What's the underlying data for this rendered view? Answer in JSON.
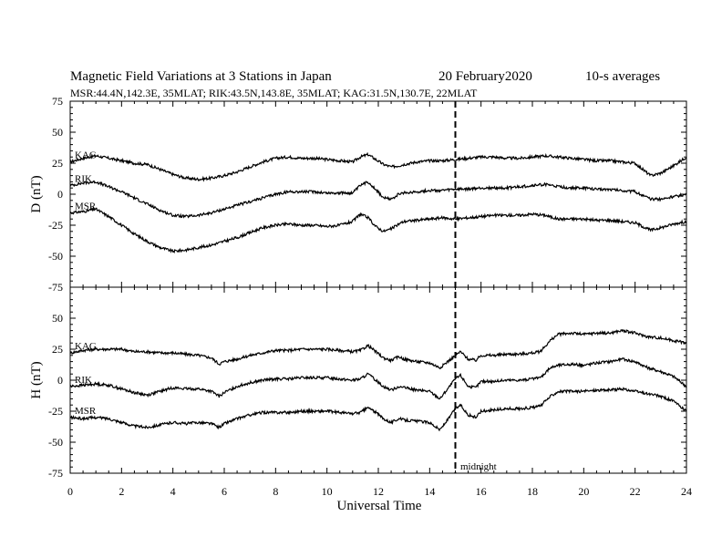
{
  "chart_data": {
    "type": "line",
    "title": "Magnetic Field Variations at 3 Stations in Japan",
    "date": "20 February2020",
    "averaging": "10-s averages",
    "subtitle": "MSR:44.4N,142.3E, 35MLAT;  RIK:43.5N,143.8E, 35MLAT;  KAG:31.5N,130.7E, 22MLAT",
    "xlabel": "Universal Time",
    "xlim": [
      0,
      24
    ],
    "xticks": [
      "0",
      "2",
      "4",
      "6",
      "8",
      "10",
      "12",
      "14",
      "16",
      "18",
      "20",
      "22",
      "24"
    ],
    "annotation": {
      "x": 15,
      "label": "midnight"
    },
    "panels": [
      {
        "ylabel": "D (nT)",
        "ylim": [
          -75,
          75
        ],
        "yticks": [
          "75",
          "50",
          "25",
          "0",
          "-25",
          "-50",
          "-75"
        ],
        "series": [
          {
            "name": "KAG",
            "x": [
              0,
              0.5,
              1,
              1.5,
              2,
              2.5,
              3,
              3.5,
              4,
              4.5,
              5,
              5.5,
              6,
              6.5,
              7,
              7.5,
              8,
              8.5,
              9,
              9.5,
              10,
              10.5,
              11,
              11.3,
              11.6,
              11.9,
              12.2,
              12.5,
              12.8,
              13,
              13.5,
              14,
              14.5,
              15,
              15.5,
              16,
              16.5,
              17,
              17.5,
              18,
              18.5,
              19,
              19.5,
              20,
              20.5,
              21,
              21.5,
              22,
              22.3,
              22.6,
              23,
              23.5,
              24
            ],
            "values": [
              26,
              29,
              31,
              29,
              27,
              25,
              24,
              20,
              16,
              13,
              12,
              13,
              15,
              18,
              22,
              26,
              29,
              30,
              29,
              29,
              28,
              27,
              26,
              30,
              32,
              28,
              24,
              22,
              23,
              24,
              26,
              27,
              27,
              28,
              29,
              30,
              30,
              29,
              29,
              30,
              31,
              30,
              29,
              28,
              27,
              27,
              26,
              25,
              20,
              15,
              17,
              23,
              30
            ]
          },
          {
            "name": "RIK",
            "x": [
              0,
              0.5,
              1,
              1.5,
              2,
              2.5,
              3,
              3.5,
              4,
              4.5,
              5,
              5.5,
              6,
              6.5,
              7,
              7.5,
              8,
              8.5,
              9,
              9.5,
              10,
              10.5,
              11,
              11.3,
              11.6,
              11.9,
              12.2,
              12.5,
              12.8,
              13,
              13.5,
              14,
              14.5,
              15,
              15.5,
              16,
              16.5,
              17,
              17.5,
              18,
              18.5,
              19,
              19.5,
              20,
              20.5,
              21,
              21.5,
              22,
              22.3,
              22.6,
              23,
              23.5,
              24
            ],
            "values": [
              7,
              9,
              10,
              6,
              2,
              -3,
              -8,
              -13,
              -17,
              -18,
              -17,
              -15,
              -12,
              -9,
              -6,
              -3,
              0,
              2,
              2,
              2,
              1,
              1,
              1,
              7,
              10,
              4,
              -3,
              -4,
              0,
              1,
              2,
              3,
              3,
              4,
              4,
              5,
              5,
              5,
              6,
              7,
              8,
              6,
              5,
              5,
              4,
              4,
              3,
              2,
              -1,
              -4,
              -4,
              -2,
              0
            ]
          },
          {
            "name": "MSR",
            "x": [
              0,
              0.5,
              1,
              1.5,
              2,
              2.5,
              3,
              3.5,
              4,
              4.5,
              5,
              5.5,
              6,
              6.5,
              7,
              7.5,
              8,
              8.5,
              9,
              9.5,
              10,
              10.5,
              11,
              11.3,
              11.6,
              11.9,
              12.2,
              12.5,
              12.8,
              13,
              13.5,
              14,
              14.5,
              15,
              15.5,
              16,
              16.5,
              17,
              17.5,
              18,
              18.5,
              19,
              19.5,
              20,
              20.5,
              21,
              21.5,
              22,
              22.3,
              22.6,
              23,
              23.5,
              24
            ],
            "values": [
              -15,
              -14,
              -12,
              -18,
              -25,
              -32,
              -38,
              -43,
              -46,
              -45,
              -43,
              -41,
              -38,
              -35,
              -31,
              -27,
              -25,
              -24,
              -25,
              -25,
              -26,
              -25,
              -22,
              -16,
              -19,
              -26,
              -30,
              -28,
              -24,
              -22,
              -21,
              -20,
              -19,
              -20,
              -19,
              -18,
              -17,
              -17,
              -17,
              -16,
              -17,
              -20,
              -20,
              -20,
              -21,
              -21,
              -22,
              -23,
              -26,
              -29,
              -27,
              -24,
              -22
            ]
          }
        ]
      },
      {
        "ylabel": "H (nT)",
        "ylim": [
          -75,
          75
        ],
        "yticks": [
          "50",
          "25",
          "0",
          "-25",
          "-50",
          "-75"
        ],
        "series": [
          {
            "name": "KAG",
            "x": [
              0,
              0.5,
              1,
              1.5,
              2,
              2.5,
              3,
              3.5,
              4,
              4.5,
              5,
              5.5,
              5.8,
              6,
              6.5,
              7,
              7.5,
              8,
              8.5,
              9,
              9.5,
              10,
              10.5,
              11,
              11.3,
              11.6,
              11.9,
              12.2,
              12.5,
              12.8,
              13,
              13.5,
              14,
              14.4,
              14.7,
              15,
              15.2,
              15.5,
              15.8,
              16,
              16.5,
              17,
              17.5,
              18,
              18.3,
              18.7,
              19,
              19.5,
              20,
              20.5,
              21,
              21.5,
              22,
              22.5,
              23,
              23.5,
              24
            ],
            "values": [
              22,
              24,
              25,
              25,
              25,
              23,
              23,
              22,
              22,
              21,
              20,
              18,
              13,
              15,
              17,
              20,
              22,
              24,
              24,
              25,
              25,
              25,
              24,
              23,
              24,
              28,
              23,
              18,
              16,
              19,
              17,
              15,
              14,
              10,
              15,
              20,
              23,
              17,
              16,
              20,
              20,
              21,
              21,
              22,
              23,
              32,
              37,
              38,
              37,
              38,
              38,
              40,
              38,
              35,
              34,
              32,
              30
            ]
          },
          {
            "name": "RIK",
            "x": [
              0,
              0.5,
              1,
              1.5,
              2,
              2.5,
              3,
              3.5,
              4,
              4.5,
              5,
              5.5,
              5.8,
              6,
              6.5,
              7,
              7.5,
              8,
              8.5,
              9,
              9.5,
              10,
              10.5,
              11,
              11.3,
              11.6,
              11.9,
              12.2,
              12.5,
              12.8,
              13,
              13.5,
              14,
              14.4,
              14.7,
              15,
              15.2,
              15.5,
              15.8,
              16,
              16.5,
              17,
              17.5,
              18,
              18.3,
              18.7,
              19,
              19.5,
              20,
              20.5,
              21,
              21.5,
              22,
              22.5,
              23,
              23.5,
              24
            ],
            "values": [
              -5,
              -4,
              -3,
              -4,
              -7,
              -10,
              -12,
              -9,
              -6,
              -7,
              -7,
              -9,
              -13,
              -10,
              -5,
              -2,
              0,
              1,
              1,
              2,
              2,
              2,
              1,
              0,
              1,
              5,
              0,
              -5,
              -8,
              -5,
              -6,
              -8,
              -9,
              -15,
              -7,
              1,
              4,
              -5,
              -6,
              -1,
              -1,
              0,
              0,
              1,
              2,
              10,
              12,
              13,
              12,
              14,
              15,
              17,
              15,
              10,
              7,
              3,
              -5
            ]
          },
          {
            "name": "MSR",
            "x": [
              0,
              0.5,
              1,
              1.5,
              2,
              2.5,
              3,
              3.5,
              4,
              4.5,
              5,
              5.5,
              5.8,
              6,
              6.5,
              7,
              7.5,
              8,
              8.5,
              9,
              9.5,
              10,
              10.5,
              11,
              11.3,
              11.6,
              11.9,
              12.2,
              12.5,
              12.8,
              13,
              13.5,
              14,
              14.4,
              14.7,
              15,
              15.2,
              15.5,
              15.8,
              16,
              16.5,
              17,
              17.5,
              18,
              18.3,
              18.7,
              19,
              19.5,
              20,
              20.5,
              21,
              21.5,
              22,
              22.5,
              23,
              23.5,
              24
            ],
            "values": [
              -30,
              -31,
              -30,
              -31,
              -34,
              -37,
              -38,
              -36,
              -34,
              -35,
              -34,
              -35,
              -38,
              -35,
              -31,
              -28,
              -26,
              -26,
              -26,
              -25,
              -25,
              -25,
              -26,
              -27,
              -26,
              -22,
              -26,
              -31,
              -34,
              -31,
              -32,
              -33,
              -34,
              -40,
              -32,
              -23,
              -20,
              -28,
              -30,
              -25,
              -24,
              -23,
              -23,
              -22,
              -21,
              -13,
              -9,
              -9,
              -9,
              -8,
              -8,
              -7,
              -9,
              -11,
              -13,
              -17,
              -25
            ]
          }
        ]
      }
    ]
  }
}
